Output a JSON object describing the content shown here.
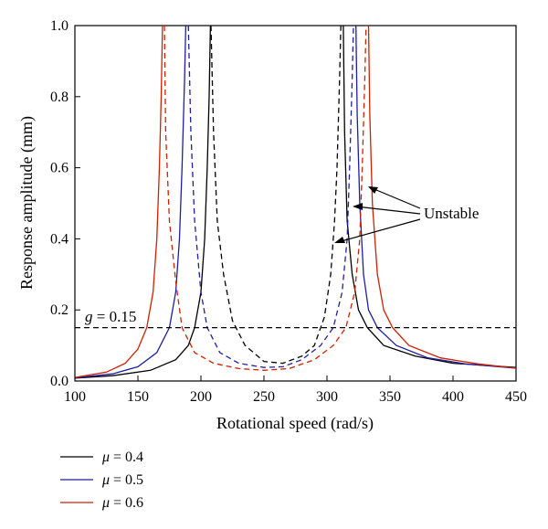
{
  "chart_data": {
    "type": "line",
    "xlabel": "Rotational speed (rad/s)",
    "ylabel": "Response amplitude (mm)",
    "xlim": [
      100,
      450
    ],
    "ylim": [
      0.0,
      1.0
    ],
    "xticks": [
      100,
      150,
      200,
      250,
      300,
      350,
      400,
      450
    ],
    "yticks": [
      "0.0",
      "0.2",
      "0.4",
      "0.6",
      "0.8",
      "1.0"
    ],
    "grid": false,
    "threshold": {
      "label_var": "g",
      "label_rest": " = 0.15",
      "y": 0.15
    },
    "annotation": {
      "text": "Unstable"
    },
    "legend": {
      "placement": "bottom-left",
      "entries": [
        {
          "var": "μ",
          "text": " = 0.4",
          "color": "#000000"
        },
        {
          "var": "μ",
          "text": " = 0.5",
          "color": "#1f1f9f"
        },
        {
          "var": "μ",
          "text": " = 0.6",
          "color": "#cc2200"
        }
      ]
    },
    "series": [
      {
        "name": "μ = 0.4",
        "color": "#000000",
        "solid_left": [
          [
            100,
            0.008
          ],
          [
            130,
            0.015
          ],
          [
            160,
            0.03
          ],
          [
            180,
            0.06
          ],
          [
            190,
            0.1
          ],
          [
            195,
            0.15
          ],
          [
            200,
            0.25
          ],
          [
            203,
            0.4
          ],
          [
            205,
            0.6
          ],
          [
            206.5,
            0.8
          ],
          [
            207.5,
            1.0
          ]
        ],
        "dashed_mid": [
          [
            208,
            1.0
          ],
          [
            210,
            0.7
          ],
          [
            213,
            0.45
          ],
          [
            218,
            0.3
          ],
          [
            225,
            0.17
          ],
          [
            235,
            0.1
          ],
          [
            250,
            0.055
          ],
          [
            265,
            0.05
          ],
          [
            280,
            0.07
          ],
          [
            290,
            0.1
          ],
          [
            298,
            0.18
          ],
          [
            303,
            0.3
          ],
          [
            306,
            0.45
          ],
          [
            308,
            0.6
          ],
          [
            310,
            0.85
          ],
          [
            311,
            1.0
          ]
        ],
        "solid_right": [
          [
            313,
            1.0
          ],
          [
            314,
            0.7
          ],
          [
            316,
            0.45
          ],
          [
            320,
            0.3
          ],
          [
            325,
            0.2
          ],
          [
            332,
            0.15
          ],
          [
            345,
            0.1
          ],
          [
            370,
            0.07
          ],
          [
            400,
            0.05
          ],
          [
            450,
            0.038
          ]
        ]
      },
      {
        "name": "μ = 0.5",
        "color": "#1f1f9f",
        "solid_left": [
          [
            100,
            0.009
          ],
          [
            130,
            0.02
          ],
          [
            150,
            0.04
          ],
          [
            165,
            0.08
          ],
          [
            175,
            0.15
          ],
          [
            180,
            0.25
          ],
          [
            183,
            0.4
          ],
          [
            185,
            0.6
          ],
          [
            187,
            0.85
          ],
          [
            188,
            1.0
          ]
        ],
        "dashed_mid": [
          [
            190,
            1.0
          ],
          [
            192,
            0.7
          ],
          [
            195,
            0.45
          ],
          [
            200,
            0.25
          ],
          [
            205,
            0.15
          ],
          [
            215,
            0.08
          ],
          [
            230,
            0.05
          ],
          [
            250,
            0.038
          ],
          [
            265,
            0.04
          ],
          [
            280,
            0.06
          ],
          [
            295,
            0.1
          ],
          [
            305,
            0.15
          ],
          [
            312,
            0.25
          ],
          [
            316,
            0.4
          ],
          [
            318,
            0.6
          ],
          [
            320,
            0.85
          ],
          [
            321,
            1.0
          ]
        ],
        "solid_right": [
          [
            323,
            1.0
          ],
          [
            324,
            0.75
          ],
          [
            326,
            0.5
          ],
          [
            329,
            0.3
          ],
          [
            333,
            0.2
          ],
          [
            340,
            0.15
          ],
          [
            355,
            0.1
          ],
          [
            380,
            0.065
          ],
          [
            410,
            0.048
          ],
          [
            450,
            0.036
          ]
        ]
      },
      {
        "name": "μ = 0.6",
        "color": "#cc2200",
        "solid_left": [
          [
            100,
            0.01
          ],
          [
            125,
            0.025
          ],
          [
            140,
            0.05
          ],
          [
            150,
            0.09
          ],
          [
            157,
            0.15
          ],
          [
            162,
            0.25
          ],
          [
            165,
            0.4
          ],
          [
            167,
            0.6
          ],
          [
            168.5,
            0.8
          ],
          [
            169.5,
            1.0
          ]
        ],
        "dashed_mid": [
          [
            171,
            1.0
          ],
          [
            172,
            0.7
          ],
          [
            175,
            0.45
          ],
          [
            180,
            0.28
          ],
          [
            185,
            0.15
          ],
          [
            195,
            0.08
          ],
          [
            210,
            0.05
          ],
          [
            230,
            0.035
          ],
          [
            250,
            0.03
          ],
          [
            270,
            0.035
          ],
          [
            290,
            0.06
          ],
          [
            305,
            0.1
          ],
          [
            315,
            0.15
          ],
          [
            322,
            0.25
          ],
          [
            326,
            0.4
          ],
          [
            328,
            0.6
          ],
          [
            330,
            0.85
          ],
          [
            331,
            1.0
          ]
        ],
        "solid_right": [
          [
            333,
            1.0
          ],
          [
            334,
            0.75
          ],
          [
            336,
            0.5
          ],
          [
            340,
            0.3
          ],
          [
            345,
            0.2
          ],
          [
            352,
            0.15
          ],
          [
            365,
            0.1
          ],
          [
            390,
            0.065
          ],
          [
            420,
            0.048
          ],
          [
            450,
            0.036
          ]
        ]
      }
    ]
  }
}
